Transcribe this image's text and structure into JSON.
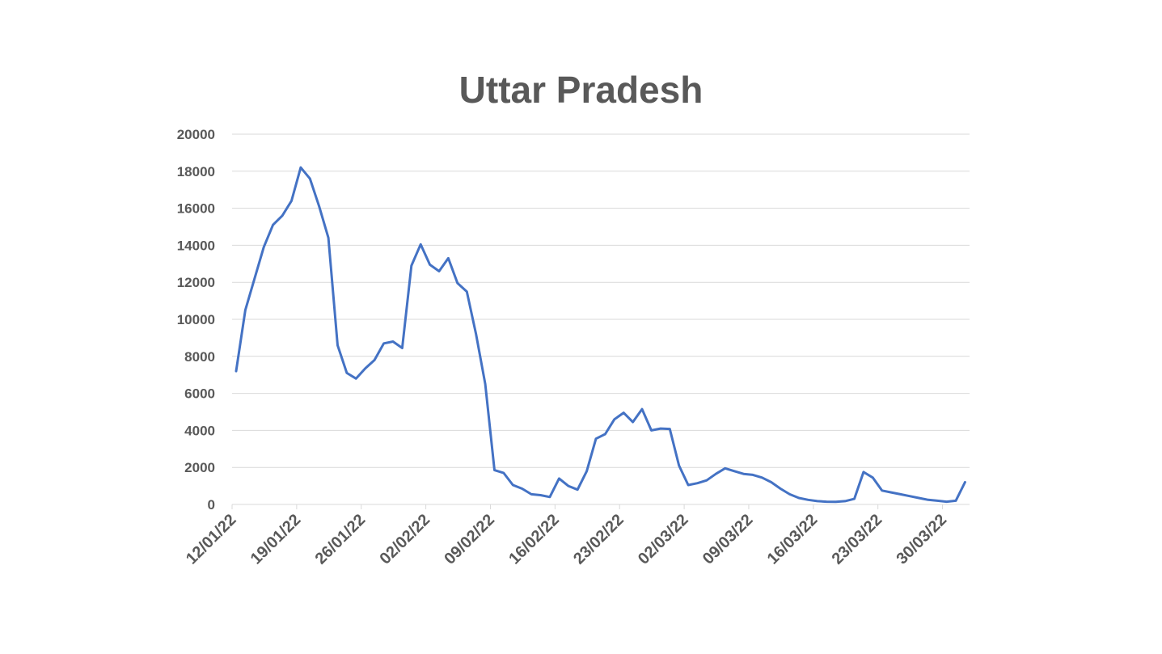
{
  "chart_data": {
    "type": "line",
    "title": "Uttar Pradesh",
    "xlabel": "",
    "ylabel": "",
    "ylim": [
      0,
      20000
    ],
    "yticks": [
      0,
      2000,
      4000,
      6000,
      8000,
      10000,
      12000,
      14000,
      16000,
      18000,
      20000
    ],
    "grid": true,
    "legend": "none",
    "line_color": "#4472C4",
    "start_date": "12/01/22",
    "x_tick_labels": [
      "12/01/22",
      "19/01/22",
      "26/01/22",
      "02/02/22",
      "09/02/22",
      "16/02/22",
      "23/02/22",
      "02/03/22",
      "09/03/22",
      "16/03/22",
      "23/03/22",
      "30/03/22"
    ],
    "x": [
      "12/01/22",
      "13/01/22",
      "14/01/22",
      "15/01/22",
      "16/01/22",
      "17/01/22",
      "18/01/22",
      "19/01/22",
      "20/01/22",
      "21/01/22",
      "22/01/22",
      "23/01/22",
      "24/01/22",
      "25/01/22",
      "26/01/22",
      "27/01/22",
      "28/01/22",
      "29/01/22",
      "30/01/22",
      "31/01/22",
      "01/02/22",
      "02/02/22",
      "03/02/22",
      "04/02/22",
      "05/02/22",
      "06/02/22",
      "07/02/22",
      "08/02/22",
      "09/02/22",
      "10/02/22",
      "11/02/22",
      "12/02/22",
      "13/02/22",
      "14/02/22",
      "15/02/22",
      "16/02/22",
      "17/02/22",
      "18/02/22",
      "19/02/22",
      "20/02/22",
      "21/02/22",
      "22/02/22",
      "23/02/22",
      "24/02/22",
      "25/02/22",
      "26/02/22",
      "27/02/22",
      "28/02/22",
      "01/03/22",
      "02/03/22",
      "03/03/22",
      "04/03/22",
      "05/03/22",
      "06/03/22",
      "07/03/22",
      "08/03/22",
      "09/03/22",
      "10/03/22",
      "11/03/22",
      "12/03/22",
      "13/03/22",
      "14/03/22",
      "15/03/22",
      "16/03/22",
      "17/03/22",
      "18/03/22",
      "19/03/22",
      "20/03/22",
      "21/03/22",
      "22/03/22",
      "23/03/22",
      "24/03/22",
      "25/03/22",
      "26/03/22",
      "27/03/22",
      "28/03/22",
      "29/03/22",
      "30/03/22",
      "31/03/22",
      "01/04/22"
    ],
    "values": [
      7200,
      10500,
      12200,
      13900,
      15100,
      15600,
      16400,
      18200,
      17600,
      16100,
      14400,
      8600,
      7100,
      6800,
      7350,
      7800,
      8700,
      8800,
      8450,
      12900,
      14050,
      12950,
      12600,
      13300,
      11950,
      11500,
      9200,
      6500,
      1850,
      1700,
      1050,
      850,
      550,
      500,
      400,
      1400,
      1000,
      800,
      1800,
      3550,
      3800,
      4600,
      4950,
      4450,
      5150,
      4000,
      4100,
      4080,
      2100,
      1050,
      1150,
      1300,
      1650,
      1950,
      1800,
      1650,
      1600,
      1450,
      1200,
      850,
      550,
      350,
      250,
      180,
      150,
      140,
      180,
      300,
      1750,
      1450,
      750,
      650,
      550,
      450,
      350,
      250,
      200,
      150,
      200,
      1200
    ]
  }
}
